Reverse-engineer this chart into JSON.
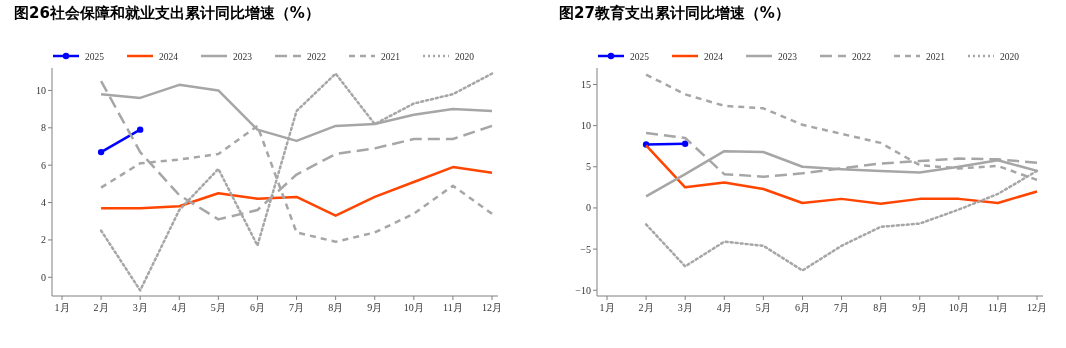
{
  "chart_data": [
    {
      "type": "line",
      "title": "图26社会保障和就业支出累计同比增速（%）",
      "categories": [
        "1月",
        "2月",
        "3月",
        "4月",
        "5月",
        "6月",
        "7月",
        "8月",
        "9月",
        "10月",
        "11月",
        "12月"
      ],
      "ylim": [
        -1,
        11.2
      ],
      "yticks": [
        0,
        2,
        4,
        6,
        8,
        10
      ],
      "grid": false,
      "legend": "top",
      "series": [
        {
          "name": "2025",
          "color": "#0000ff",
          "marker": "circle",
          "line_style": "solid",
          "values": [
            null,
            6.7,
            7.9,
            null,
            null,
            null,
            null,
            null,
            null,
            null,
            null,
            null
          ]
        },
        {
          "name": "2024",
          "color": "#ff4500",
          "line_style": "solid",
          "values": [
            null,
            3.7,
            3.7,
            3.8,
            4.5,
            4.2,
            4.3,
            3.3,
            4.3,
            5.1,
            5.9,
            5.6
          ]
        },
        {
          "name": "2023",
          "color": "#a6a6a6",
          "line_style": "solid",
          "values": [
            null,
            9.8,
            9.6,
            10.3,
            10.0,
            7.9,
            7.3,
            8.1,
            8.2,
            8.7,
            9.0,
            8.9
          ]
        },
        {
          "name": "2022",
          "color": "#a6a6a6",
          "line_style": "dashed",
          "values": [
            null,
            10.5,
            6.7,
            4.4,
            3.1,
            3.6,
            5.5,
            6.6,
            6.9,
            7.4,
            7.4,
            8.1
          ]
        },
        {
          "name": "2021",
          "color": "#a6a6a6",
          "line_style": "shortdash",
          "values": [
            null,
            4.8,
            6.1,
            6.3,
            6.6,
            8.1,
            2.4,
            1.9,
            2.4,
            3.4,
            4.9,
            3.4
          ]
        },
        {
          "name": "2020",
          "color": "#a6a6a6",
          "line_style": "dotted",
          "values": [
            null,
            2.5,
            -0.7,
            3.6,
            5.8,
            1.7,
            8.9,
            10.9,
            8.2,
            9.3,
            9.8,
            10.9
          ]
        }
      ]
    },
    {
      "type": "line",
      "title": "图27教育支出累计同比增速（%）",
      "categories": [
        "1月",
        "2月",
        "3月",
        "4月",
        "5月",
        "6月",
        "7月",
        "8月",
        "9月",
        "10月",
        "11月",
        "12月"
      ],
      "ylim": [
        -10.7,
        17
      ],
      "yticks": [
        -10,
        -5,
        0,
        5,
        10,
        15
      ],
      "grid": false,
      "legend": "top",
      "series": [
        {
          "name": "2025",
          "color": "#0000ff",
          "marker": "circle",
          "line_style": "solid",
          "values": [
            null,
            7.7,
            7.8,
            null,
            null,
            null,
            null,
            null,
            null,
            null,
            null,
            null
          ]
        },
        {
          "name": "2024",
          "color": "#ff4500",
          "line_style": "solid",
          "values": [
            null,
            7.6,
            2.5,
            3.1,
            2.3,
            0.6,
            1.1,
            0.5,
            1.1,
            1.1,
            0.6,
            2.0
          ]
        },
        {
          "name": "2023",
          "color": "#a6a6a6",
          "line_style": "solid",
          "values": [
            null,
            1.4,
            4.1,
            6.9,
            6.8,
            5.0,
            4.7,
            4.5,
            4.3,
            5.0,
            5.8,
            4.5
          ]
        },
        {
          "name": "2022",
          "color": "#a6a6a6",
          "line_style": "dashed",
          "values": [
            null,
            9.1,
            8.5,
            4.1,
            3.8,
            4.2,
            4.8,
            5.4,
            5.7,
            6.0,
            5.9,
            5.5
          ]
        },
        {
          "name": "2021",
          "color": "#a6a6a6",
          "line_style": "shortdash",
          "values": [
            null,
            16.2,
            13.8,
            12.4,
            12.1,
            10.1,
            9.0,
            7.9,
            5.2,
            4.8,
            5.1,
            3.4
          ]
        },
        {
          "name": "2020",
          "color": "#a6a6a6",
          "line_style": "dotted",
          "values": [
            null,
            -2.0,
            -7.1,
            -4.1,
            -4.6,
            -7.6,
            -4.6,
            -2.3,
            -1.9,
            -0.2,
            1.7,
            4.5
          ]
        }
      ]
    }
  ]
}
